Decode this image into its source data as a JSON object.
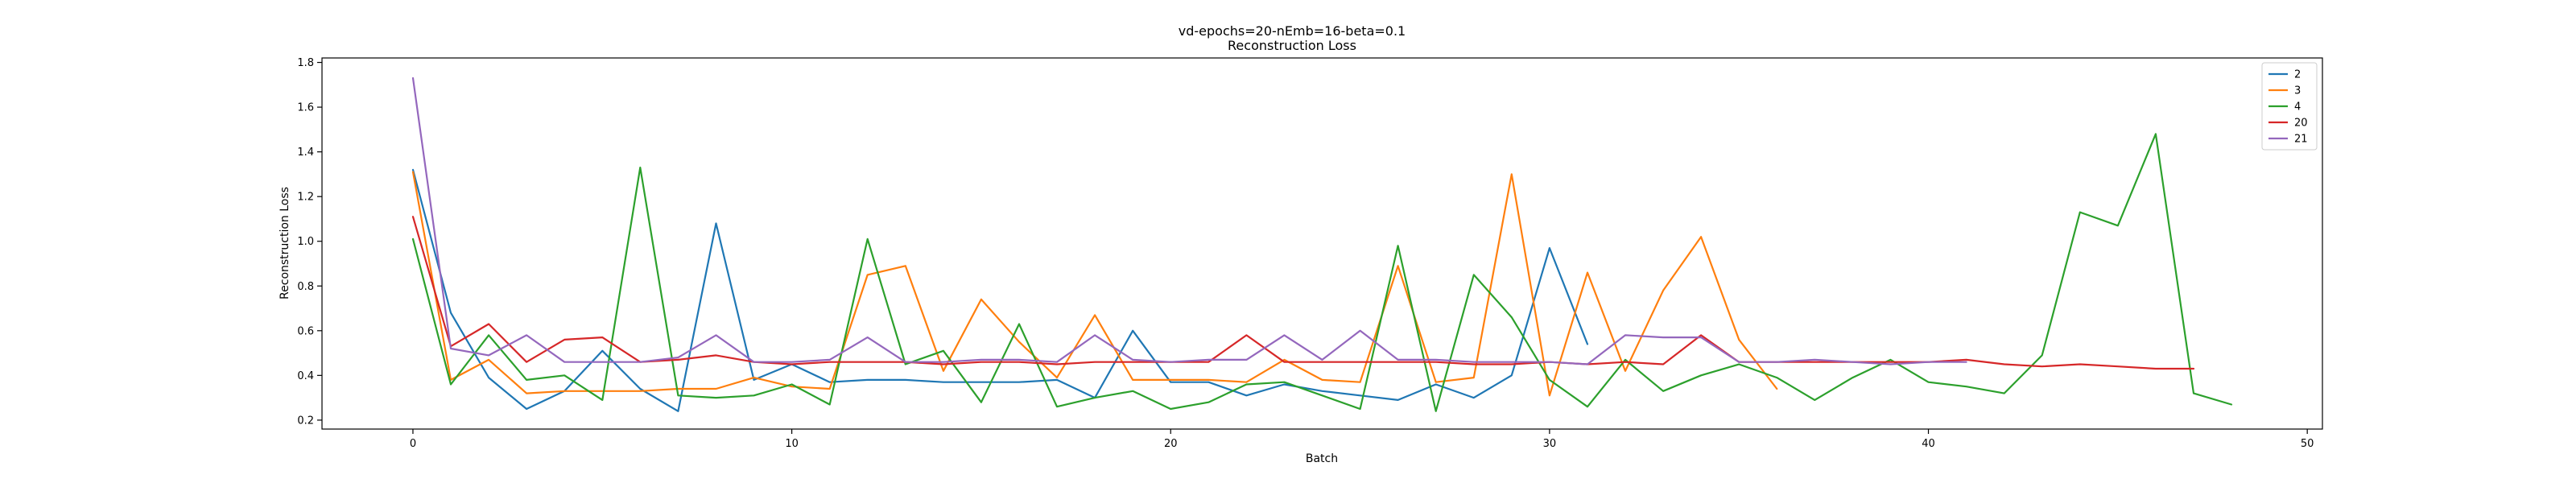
{
  "chart_data": {
    "type": "line",
    "title": "vd-epochs=20-nEmb=16-beta=0.1",
    "subtitle": "Reconstruction Loss",
    "xlabel": "Batch",
    "ylabel": "Reconstruction Loss",
    "xlim": [
      -2.4,
      50.4
    ],
    "ylim": [
      0.16,
      1.82
    ],
    "xticks": [
      "0",
      "10",
      "20",
      "30",
      "40",
      "50"
    ],
    "yticks": [
      "0.2",
      "0.4",
      "0.6",
      "0.8",
      "1.0",
      "1.2",
      "1.4",
      "1.6",
      "1.8"
    ],
    "grid": false,
    "legend_position": "top-right",
    "series": [
      {
        "name": "2",
        "color": "#1f77b4",
        "values": [
          1.32,
          0.68,
          0.39,
          0.25,
          0.33,
          0.51,
          0.34,
          0.24,
          1.08,
          0.38,
          0.45,
          0.37,
          0.38,
          0.38,
          0.37,
          0.37,
          0.37,
          0.38,
          0.3,
          0.6,
          0.37,
          0.37,
          0.31,
          0.36,
          0.33,
          0.31,
          0.29,
          0.36,
          0.3,
          0.4,
          0.97,
          0.54
        ]
      },
      {
        "name": "3",
        "color": "#ff7f0e",
        "values": [
          1.31,
          0.38,
          0.47,
          0.32,
          0.33,
          0.33,
          0.33,
          0.34,
          0.34,
          0.39,
          0.35,
          0.34,
          0.85,
          0.89,
          0.42,
          0.74,
          0.55,
          0.39,
          0.67,
          0.38,
          0.38,
          0.38,
          0.37,
          0.47,
          0.38,
          0.37,
          0.89,
          0.37,
          0.39,
          1.3,
          0.31,
          0.86,
          0.42,
          0.78,
          1.02,
          0.56,
          0.34
        ]
      },
      {
        "name": "4",
        "color": "#2ca02c",
        "values": [
          1.01,
          0.36,
          0.58,
          0.38,
          0.4,
          0.29,
          1.33,
          0.31,
          0.3,
          0.31,
          0.36,
          0.27,
          1.01,
          0.45,
          0.51,
          0.28,
          0.63,
          0.26,
          0.3,
          0.33,
          0.25,
          0.28,
          0.36,
          0.37,
          0.31,
          0.25,
          0.98,
          0.24,
          0.85,
          0.66,
          0.38,
          0.26,
          0.47,
          0.33,
          0.4,
          0.45,
          0.39,
          0.29,
          0.39,
          0.47,
          0.37,
          0.35,
          0.32,
          0.49,
          1.13,
          1.07,
          1.48,
          0.32,
          0.27
        ]
      },
      {
        "name": "20",
        "color": "#d62728",
        "values": [
          1.11,
          0.53,
          0.63,
          0.46,
          0.56,
          0.57,
          0.46,
          0.47,
          0.49,
          0.46,
          0.45,
          0.46,
          0.46,
          0.46,
          0.45,
          0.46,
          0.46,
          0.45,
          0.46,
          0.46,
          0.46,
          0.46,
          0.58,
          0.46,
          0.46,
          0.46,
          0.46,
          0.46,
          0.45,
          0.45,
          0.46,
          0.45,
          0.46,
          0.45,
          0.58,
          0.46,
          0.46,
          0.46,
          0.46,
          0.46,
          0.46,
          0.47,
          0.45,
          0.44,
          0.45,
          0.44,
          0.43,
          0.43
        ]
      },
      {
        "name": "21",
        "color": "#9467bd",
        "values": [
          1.73,
          0.52,
          0.49,
          0.58,
          0.46,
          0.46,
          0.46,
          0.48,
          0.58,
          0.46,
          0.46,
          0.47,
          0.57,
          0.46,
          0.46,
          0.47,
          0.47,
          0.46,
          0.58,
          0.47,
          0.46,
          0.47,
          0.47,
          0.58,
          0.47,
          0.6,
          0.47,
          0.47,
          0.46,
          0.46,
          0.46,
          0.45,
          0.58,
          0.57,
          0.57,
          0.46,
          0.46,
          0.47,
          0.46,
          0.45,
          0.46,
          0.46
        ]
      }
    ]
  }
}
